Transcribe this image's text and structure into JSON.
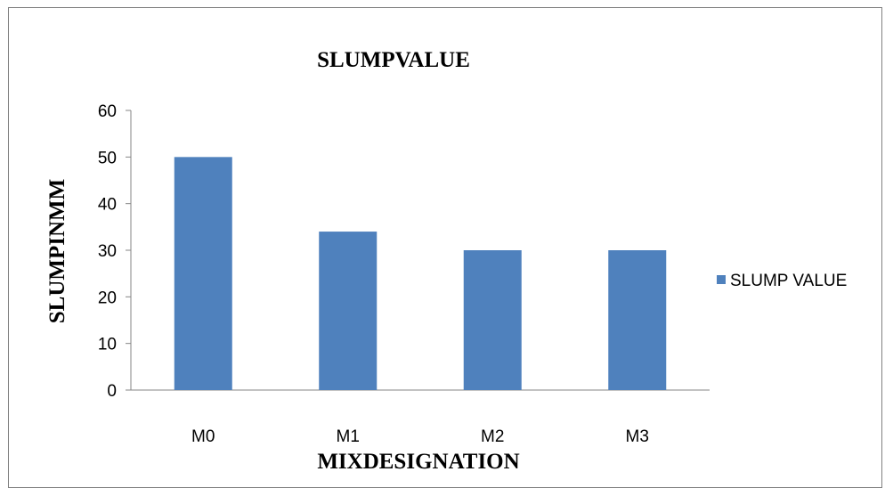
{
  "chart_data": {
    "type": "bar",
    "title": "SLUMPVALUE",
    "xlabel": "MIXDESIGNATION",
    "ylabel": "SLUMPINMM",
    "categories": [
      "M0",
      "M1",
      "M2",
      "M3"
    ],
    "series": [
      {
        "name": "SLUMP VALUE",
        "values": [
          50,
          34,
          30,
          30
        ],
        "color": "#4F81BD"
      }
    ],
    "ylim": [
      0,
      60
    ],
    "yticks": [
      0,
      10,
      20,
      30,
      40,
      50,
      60
    ],
    "grid": false,
    "legend": "right"
  }
}
